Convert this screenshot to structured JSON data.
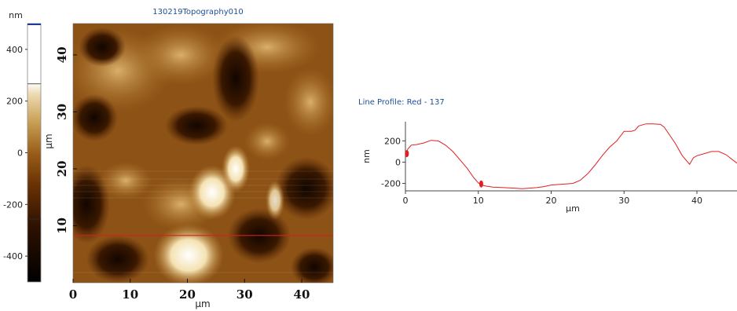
{
  "title": "130219Topography010",
  "colorbar": {
    "unit": "nm",
    "ticks": [
      400,
      200,
      0,
      -200,
      -400
    ],
    "range": [
      -500,
      500
    ],
    "marker_values": [
      267,
      -257
    ],
    "gradient": [
      "#000000",
      "#3a1600",
      "#7a3a05",
      "#b07a2a",
      "#e3cfa0",
      "#ffffff"
    ]
  },
  "image": {
    "xlabel": "µm",
    "ylabel": "µm",
    "xlim": [
      0,
      45.5
    ],
    "ylim": [
      0,
      45.5
    ],
    "xticks": [
      0,
      10,
      20,
      30,
      40
    ],
    "yticks": [
      10,
      20,
      30,
      40
    ],
    "profile_line_y": 8.3,
    "profile_line_color": "#d42020"
  },
  "profile_title": "Line Profile: Red - 137",
  "chart_data": {
    "type": "line",
    "title": "Line Profile: Red - 137",
    "xlabel": "µm",
    "ylabel": "nm",
    "xlim": [
      0,
      45.5
    ],
    "ylim": [
      -270,
      380
    ],
    "xticks": [
      0,
      10,
      20,
      30,
      40
    ],
    "yticks": [
      200,
      0,
      -200
    ],
    "color": "#e02020",
    "series": [
      {
        "x": [
          0,
          0.3,
          0.8,
          1.5,
          2.5,
          3.5,
          4.5,
          5.5,
          6.5,
          7.5,
          8.5,
          9.3,
          10,
          10.5,
          11,
          12,
          13.5,
          15,
          16,
          17,
          18,
          19,
          20,
          21,
          22,
          23,
          24,
          25,
          26,
          27,
          28,
          29,
          30,
          31,
          31.5,
          32,
          33,
          34,
          35,
          35.5,
          36,
          37,
          38,
          39,
          39.5,
          40,
          41,
          42,
          43,
          44,
          45.5
        ],
        "y": [
          80,
          120,
          160,
          165,
          180,
          205,
          200,
          160,
          100,
          20,
          -60,
          -140,
          -195,
          -215,
          -225,
          -235,
          -240,
          -245,
          -250,
          -245,
          -240,
          -230,
          -215,
          -210,
          -205,
          -200,
          -170,
          -110,
          -30,
          60,
          140,
          200,
          290,
          290,
          300,
          340,
          360,
          360,
          355,
          330,
          280,
          180,
          60,
          -20,
          40,
          60,
          80,
          100,
          100,
          70,
          -10
        ]
      }
    ],
    "markers": [
      {
        "x": 0.2,
        "y": 80
      },
      {
        "x": 10.4,
        "y": -205
      }
    ],
    "grid": false,
    "legend": "none"
  }
}
